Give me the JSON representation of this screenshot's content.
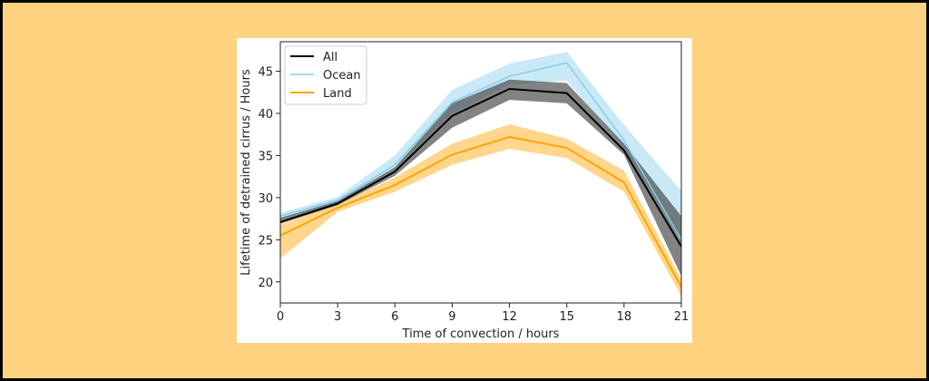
{
  "chart_data": {
    "type": "line",
    "xlabel": "Time of convection / hours",
    "ylabel": "Lifetime of detrained cirrus / Hours",
    "xlim": [
      0,
      21
    ],
    "ylim": [
      17.5,
      48.5
    ],
    "xticks": [
      0,
      3,
      6,
      9,
      12,
      15,
      18,
      21
    ],
    "yticks": [
      20,
      25,
      30,
      35,
      40,
      45
    ],
    "grid": false,
    "legend_position": "top-left",
    "series": [
      {
        "name": "All",
        "color": "#000000",
        "band_color": "#404040",
        "x": [
          0,
          3,
          6,
          9,
          12,
          15,
          18,
          21
        ],
        "values": [
          27.1,
          29.3,
          33.1,
          39.7,
          42.9,
          42.4,
          35.6,
          24.2
        ],
        "lower": [
          26.9,
          29.1,
          32.6,
          38.3,
          41.6,
          41.2,
          35.1,
          20.7
        ],
        "upper": [
          27.6,
          29.6,
          33.6,
          41.2,
          44.0,
          43.6,
          36.4,
          27.8
        ]
      },
      {
        "name": "Ocean",
        "color": "#87CEEB",
        "band_color": "#87CEEB",
        "x": [
          0,
          3,
          6,
          9,
          12,
          15,
          18,
          21
        ],
        "values": [
          27.8,
          29.7,
          33.9,
          41.3,
          44.4,
          46.0,
          36.8,
          25.0
        ],
        "lower": [
          27.5,
          29.4,
          33.4,
          40.0,
          43.4,
          43.9,
          35.9,
          25.0
        ],
        "upper": [
          28.2,
          30.1,
          35.0,
          42.8,
          45.9,
          47.3,
          38.6,
          30.8
        ]
      },
      {
        "name": "Land",
        "color": "#FFA500",
        "band_color": "#FFA500",
        "x": [
          0,
          3,
          6,
          9,
          12,
          15,
          18,
          21
        ],
        "values": [
          25.5,
          28.8,
          31.5,
          35.1,
          37.2,
          35.9,
          31.8,
          19.4
        ],
        "lower": [
          22.8,
          28.3,
          30.7,
          33.9,
          35.8,
          34.7,
          30.7,
          18.3
        ],
        "upper": [
          26.8,
          29.2,
          32.4,
          36.4,
          38.7,
          37.0,
          33.2,
          20.3
        ]
      }
    ]
  }
}
